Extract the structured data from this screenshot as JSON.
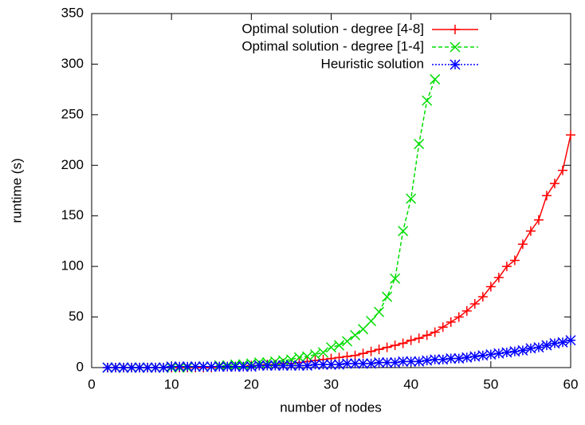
{
  "chart_data": {
    "type": "line",
    "xlabel": "number of nodes",
    "ylabel": "runtime (s)",
    "x": [
      2,
      3,
      4,
      5,
      6,
      7,
      8,
      9,
      10,
      11,
      12,
      13,
      14,
      15,
      16,
      17,
      18,
      19,
      20,
      21,
      22,
      23,
      24,
      25,
      26,
      27,
      28,
      29,
      30,
      31,
      32,
      33,
      34,
      35,
      36,
      37,
      38,
      39,
      40,
      41,
      42,
      43,
      44,
      45,
      46,
      47,
      48,
      49,
      50,
      51,
      52,
      53,
      54,
      55,
      56,
      57,
      58,
      59,
      60
    ],
    "series": [
      {
        "name": "Optimal solution - degree [4-8]",
        "color": "#ff0000",
        "dash": "solid",
        "marker": "plus",
        "values": [
          0,
          0,
          0,
          0,
          0,
          0,
          0,
          0,
          0,
          0,
          0,
          0,
          0,
          0,
          1,
          1,
          1,
          1,
          2,
          2,
          3,
          3,
          4,
          4,
          5,
          6,
          7,
          8,
          9,
          10,
          11,
          12,
          14,
          16,
          18,
          20,
          22,
          24,
          27,
          29,
          32,
          35,
          40,
          45,
          50,
          56,
          63,
          70,
          80,
          89,
          100,
          106,
          122,
          135,
          146,
          170,
          182,
          195,
          230
        ]
      },
      {
        "name": "Optimal solution - degree [1-4]",
        "color": "#00dd00",
        "dash": "dashed",
        "marker": "cross",
        "values": [
          0,
          0,
          0,
          0,
          0,
          0,
          0,
          0,
          0,
          0,
          0,
          1,
          1,
          1,
          2,
          2,
          3,
          3,
          4,
          5,
          5,
          6,
          7,
          8,
          10,
          11,
          13,
          15,
          20,
          22,
          26,
          32,
          38,
          46,
          55,
          70,
          88,
          135,
          167,
          221,
          264,
          285,
          null,
          null,
          null,
          null,
          null,
          null,
          null,
          null,
          null,
          null,
          null,
          null,
          null,
          null,
          null,
          null,
          null
        ]
      },
      {
        "name": "Heuristic solution",
        "color": "#0000ff",
        "dash": "dotted",
        "marker": "star",
        "values": [
          0,
          0,
          0,
          0,
          0,
          0,
          0,
          0,
          1,
          1,
          1,
          1,
          1,
          1,
          1,
          1,
          1,
          1,
          1,
          2,
          2,
          2,
          2,
          2,
          2,
          2,
          3,
          3,
          3,
          3,
          4,
          4,
          4,
          4,
          5,
          5,
          5,
          6,
          6,
          6,
          7,
          8,
          8,
          9,
          9,
          10,
          11,
          12,
          13,
          14,
          15,
          16,
          17,
          19,
          20,
          22,
          24,
          25,
          27
        ]
      }
    ],
    "xlim": [
      0,
      60
    ],
    "xticks": [
      0,
      10,
      20,
      30,
      40,
      50,
      60
    ],
    "ylim": [
      0,
      350
    ],
    "yticks": [
      0,
      50,
      100,
      150,
      200,
      250,
      300,
      350
    ],
    "grid": false,
    "legend": "top"
  }
}
